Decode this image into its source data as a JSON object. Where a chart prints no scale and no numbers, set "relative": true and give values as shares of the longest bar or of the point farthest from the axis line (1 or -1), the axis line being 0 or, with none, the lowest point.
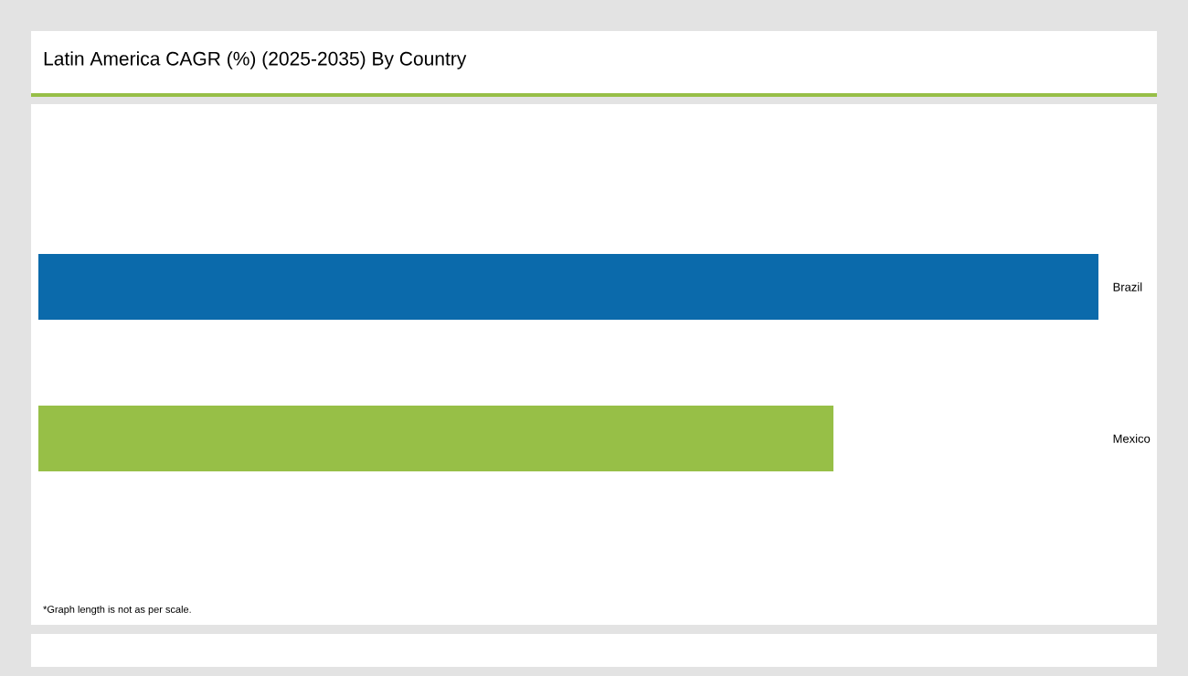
{
  "chart_data": {
    "type": "bar",
    "title": "Latin America CAGR (%) (2025-2035) By Country",
    "orientation": "horizontal",
    "relative": true,
    "categories": [
      "Brazil",
      "Mexico"
    ],
    "values": [
      1,
      0.75
    ],
    "colors": [
      "#0b6aab",
      "#97bf47"
    ],
    "annotations": [
      "*Graph length is not as per scale."
    ]
  }
}
